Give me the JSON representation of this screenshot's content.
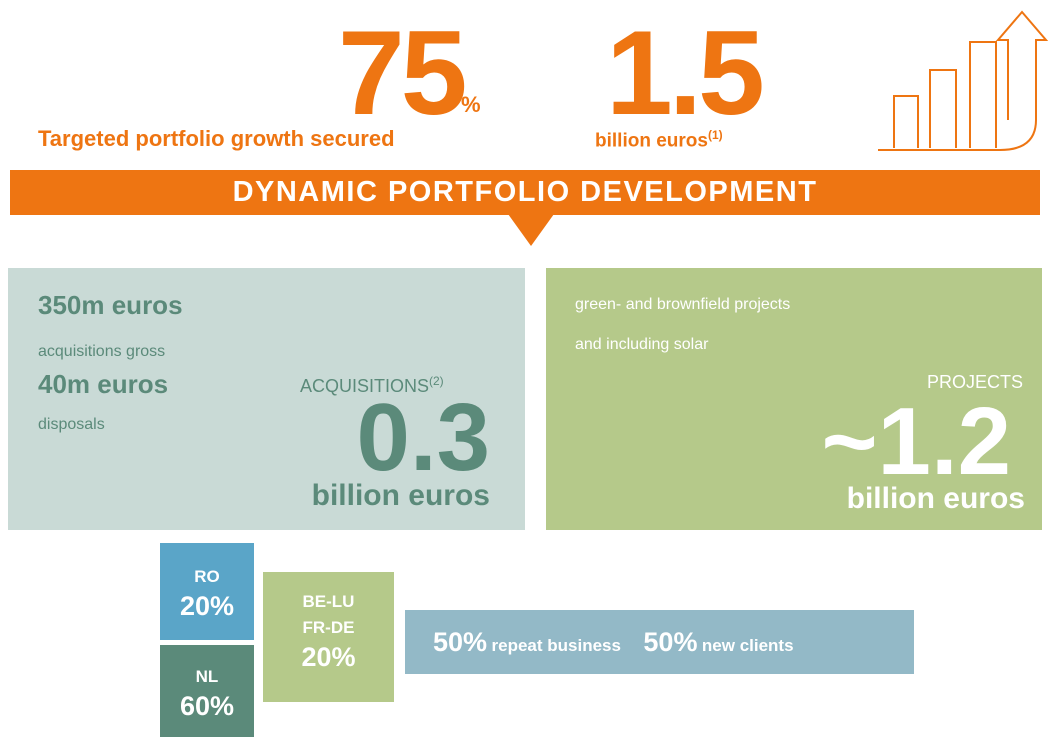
{
  "headline": {
    "growth": {
      "value": "75",
      "unit": "%",
      "label": "Targeted portfolio growth secured"
    },
    "investment": {
      "value": "1.5",
      "label": "billion euros",
      "note": "(1)"
    }
  },
  "banner": "DYNAMIC PORTFOLIO DEVELOPMENT",
  "acquisitions": {
    "items": [
      {
        "amount": "350m euros",
        "label": "acquisitions gross"
      },
      {
        "amount": "40m euros",
        "label": "disposals"
      }
    ],
    "title": "ACQUISITIONS",
    "note": "(2)",
    "value": "0.3",
    "unit": "billion euros"
  },
  "projects": {
    "lines": [
      "green- and brownfield projects",
      "and including solar"
    ],
    "title": "PROJECTS",
    "value": "~1.2",
    "unit": "billion euros"
  },
  "regions": [
    {
      "name": "RO",
      "share": "20%"
    },
    {
      "name": "NL",
      "share": "60%"
    },
    {
      "name": "BE-LU",
      "name2": "FR-DE",
      "share": "20%"
    }
  ],
  "clients": [
    {
      "share": "50%",
      "label": "repeat business"
    },
    {
      "share": "50%",
      "label": "new clients"
    }
  ]
}
